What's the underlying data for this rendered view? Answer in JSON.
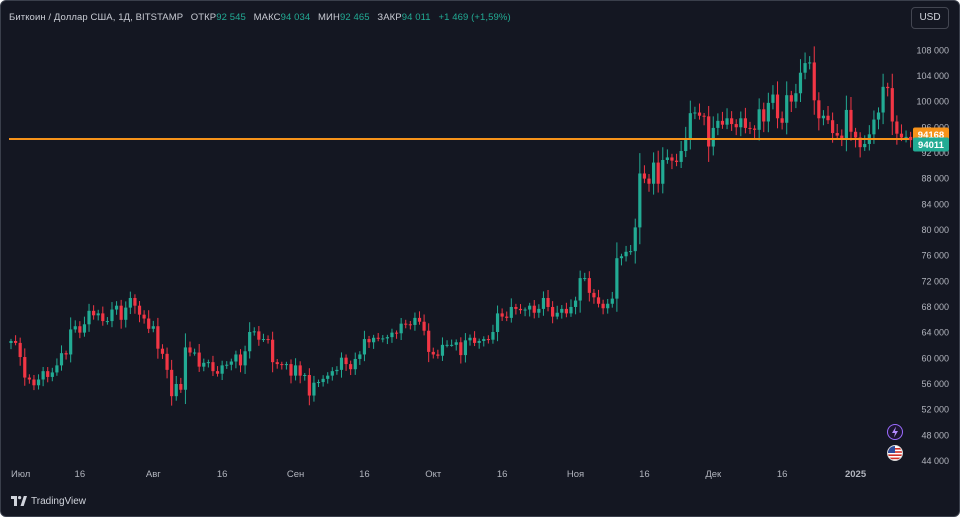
{
  "symbol": {
    "title": "Биткоин / Доллар США, 1Д, BITSTAMP",
    "open_label": "ОТКР",
    "open": "92 545",
    "high_label": "МАКС",
    "high": "94 034",
    "low_label": "МИН",
    "low": "92 465",
    "close_label": "ЗАКР",
    "close": "94 011",
    "change": "+1 469 (+1,59%)"
  },
  "currency_button": "USD",
  "branding": {
    "logo_text": "TradingView"
  },
  "colors": {
    "up": "#22ab94",
    "down": "#f23645",
    "background": "#141722",
    "horizontal_line": "#f7931a",
    "close_badge": "#22ab94"
  },
  "icons": {
    "lightning": "lightning-icon",
    "flag": "us-flag-icon"
  },
  "chart_data": {
    "type": "candlestick",
    "title": "Биткоин / Доллар США, 1Д, BITSTAMP",
    "xlabel": "",
    "ylabel": "",
    "ylim": [
      44000,
      111000
    ],
    "grid": false,
    "y_ticks": [
      "108 000",
      "104 000",
      "100 000",
      "96 000",
      "92 000",
      "88 000",
      "84 000",
      "80 000",
      "76 000",
      "72 000",
      "68 000",
      "64 000",
      "60 000",
      "56 000",
      "52 000",
      "48 000",
      "44 000"
    ],
    "x_ticks": [
      "Июл",
      "16",
      "Авг",
      "16",
      "Сен",
      "16",
      "Окт",
      "16",
      "Ноя",
      "16",
      "Дек",
      "16",
      "2025"
    ],
    "x_tick_dates": [
      "2024-07-01",
      "2024-07-16",
      "2024-08-01",
      "2024-08-16",
      "2024-09-01",
      "2024-09-16",
      "2024-10-01",
      "2024-10-16",
      "2024-11-01",
      "2024-11-16",
      "2024-12-01",
      "2024-12-16",
      "2025-01-01"
    ],
    "horizontal_line": {
      "value": 94168,
      "label": "94168"
    },
    "last_price": {
      "value": 94011,
      "label": "94011"
    },
    "start_date": "2024-07-01",
    "closes": [
      62700,
      62400,
      60200,
      57000,
      56700,
      55800,
      56700,
      58000,
      57100,
      57800,
      58900,
      60800,
      60600,
      64500,
      65000,
      64000,
      65300,
      67400,
      66700,
      67000,
      65800,
      65800,
      67600,
      68200,
      66000,
      67900,
      69400,
      68200,
      66800,
      66200,
      64600,
      65000,
      61500,
      60700,
      58200,
      54100,
      56000,
      55100,
      61700,
      60900,
      60900,
      58700,
      59300,
      59400,
      58000,
      57600,
      58900,
      59000,
      59500,
      60600,
      58900,
      61100,
      64100,
      64200,
      62900,
      63000,
      62900,
      59400,
      59100,
      59000,
      59100,
      57300,
      58900,
      57300,
      57400,
      54200,
      56200,
      56300,
      56800,
      57300,
      58000,
      58200,
      60100,
      59100,
      58300,
      59900,
      60600,
      63000,
      62500,
      63200,
      63100,
      63100,
      63300,
      64000,
      63900,
      65400,
      65300,
      65200,
      66300,
      65700,
      64300,
      61000,
      60600,
      60400,
      62100,
      62100,
      62100,
      62500,
      60500,
      62800,
      63200,
      62400,
      62700,
      63000,
      62900,
      64100,
      67000,
      66500,
      66300,
      68000,
      67700,
      67500,
      67600,
      68200,
      67100,
      67700,
      69400,
      68000,
      66500,
      67100,
      67700,
      67000,
      68000,
      69000,
      72500,
      72500,
      70200,
      69500,
      68500,
      67800,
      68500,
      69300,
      75600,
      75900,
      76600,
      76700,
      80400,
      88800,
      88000,
      87200,
      90500,
      87200,
      90900,
      91300,
      90800,
      90600,
      92300,
      94300,
      98200,
      98300,
      97800,
      97700,
      93000,
      95900,
      97000,
      96400,
      97400,
      96500,
      96000,
      97400,
      95900,
      95800,
      95600,
      98800,
      96900,
      99800,
      101100,
      97400,
      96700,
      101000,
      100000,
      101300,
      104500,
      106000,
      106100,
      100200,
      97400,
      97800,
      97100,
      95100,
      94700,
      94100,
      98700,
      95300,
      94400,
      92900,
      93400,
      94900,
      97200,
      98300,
      102300,
      102100,
      96900,
      95000,
      94400,
      94500,
      94000
    ],
    "series": [
      {
        "name": "Биткоин / Доллар США"
      }
    ]
  }
}
